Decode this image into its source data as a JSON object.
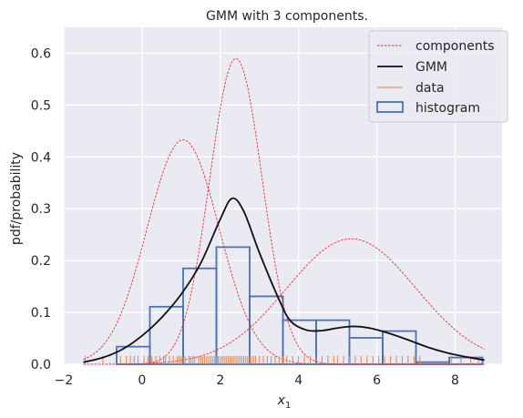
{
  "chart_data": {
    "type": "line",
    "title": "GMM with 3 components.",
    "xlabel_main": "x",
    "xlabel_sub": "1",
    "ylabel": "pdf/probability",
    "xlim": [
      -2,
      9.2
    ],
    "ylim": [
      0,
      0.65
    ],
    "xticks": [
      -2,
      0,
      2,
      4,
      6,
      8
    ],
    "yticks": [
      0.0,
      0.1,
      0.2,
      0.3,
      0.4,
      0.5,
      0.6
    ],
    "ytick_labels": [
      "0.0",
      "0.1",
      "0.2",
      "0.3",
      "0.4",
      "0.5",
      "0.6"
    ],
    "grid": true,
    "legend_position": "top-right",
    "colors": {
      "components": "#e8312f",
      "gmm": "#111111",
      "data": "#dd8452",
      "histogram": "#4c72b0",
      "background": "#eaeaf2",
      "grid": "#ffffff"
    },
    "legend": [
      {
        "label": "components",
        "style": "dashed-red"
      },
      {
        "label": "GMM",
        "style": "solid-black"
      },
      {
        "label": "data",
        "style": "solid-orange"
      },
      {
        "label": "histogram",
        "style": "box-blue"
      }
    ],
    "components": [
      {
        "mean": 1.05,
        "sd": 0.92,
        "peak": 0.433
      },
      {
        "mean": 2.4,
        "sd": 0.67,
        "peak": 0.59
      },
      {
        "mean": 5.35,
        "sd": 1.65,
        "peak": 0.242
      }
    ],
    "x_range": [
      -1.5,
      8.75
    ],
    "gmm_points": [
      [
        -1.5,
        0.004
      ],
      [
        -1.0,
        0.013
      ],
      [
        -0.5,
        0.029
      ],
      [
        0.0,
        0.055
      ],
      [
        0.5,
        0.09
      ],
      [
        1.0,
        0.135
      ],
      [
        1.5,
        0.195
      ],
      [
        2.0,
        0.28
      ],
      [
        2.3,
        0.32
      ],
      [
        2.6,
        0.295
      ],
      [
        3.0,
        0.215
      ],
      [
        3.5,
        0.125
      ],
      [
        3.8,
        0.083
      ],
      [
        4.2,
        0.066
      ],
      [
        4.6,
        0.065
      ],
      [
        5.0,
        0.07
      ],
      [
        5.4,
        0.073
      ],
      [
        5.8,
        0.07
      ],
      [
        6.3,
        0.06
      ],
      [
        6.8,
        0.047
      ],
      [
        7.3,
        0.033
      ],
      [
        7.8,
        0.022
      ],
      [
        8.3,
        0.014
      ],
      [
        8.75,
        0.008
      ]
    ],
    "histogram": {
      "edges": [
        -0.65,
        0.2,
        1.05,
        1.9,
        2.75,
        3.6,
        4.45,
        5.3,
        6.15,
        7.0,
        7.85,
        8.7
      ],
      "values": [
        0.034,
        0.111,
        0.185,
        0.226,
        0.131,
        0.085,
        0.085,
        0.051,
        0.064,
        0.004,
        0.013
      ]
    },
    "rug": [
      -1.45,
      -1.0,
      -0.55,
      -0.4,
      -0.3,
      -0.2,
      -0.1,
      0.05,
      0.15,
      0.25,
      0.35,
      0.45,
      0.55,
      0.6,
      0.7,
      0.8,
      0.9,
      0.95,
      1.0,
      1.05,
      1.1,
      1.2,
      1.25,
      1.3,
      1.35,
      1.45,
      1.5,
      1.55,
      1.6,
      1.65,
      1.7,
      1.75,
      1.8,
      1.85,
      1.9,
      1.95,
      2.0,
      2.05,
      2.1,
      2.15,
      2.2,
      2.25,
      2.3,
      2.35,
      2.4,
      2.45,
      2.5,
      2.55,
      2.6,
      2.65,
      2.7,
      2.75,
      2.8,
      2.85,
      2.9,
      3.0,
      3.1,
      3.2,
      3.3,
      3.4,
      3.5,
      3.6,
      3.7,
      3.85,
      4.0,
      4.15,
      4.3,
      4.45,
      4.6,
      4.75,
      4.9,
      5.0,
      5.15,
      5.3,
      5.45,
      5.6,
      5.75,
      5.9,
      6.05,
      6.2,
      6.35,
      6.5,
      6.65,
      6.8,
      6.95,
      7.1,
      7.9,
      8.15,
      8.4,
      8.6
    ]
  }
}
